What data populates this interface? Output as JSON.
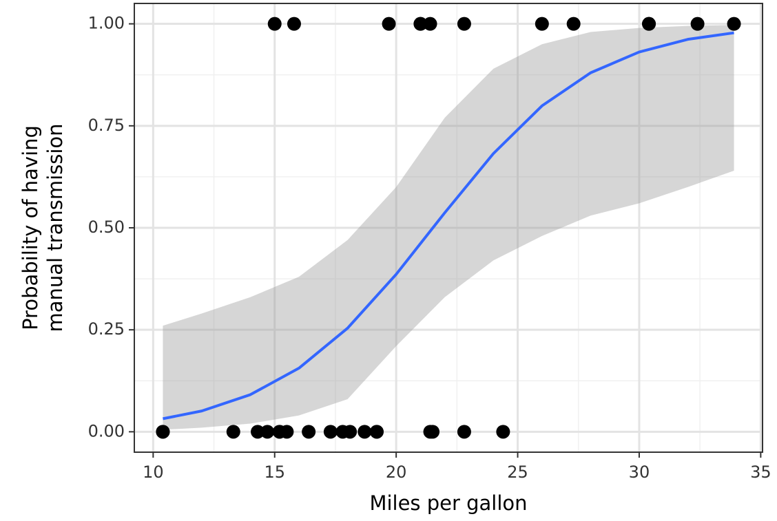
{
  "chart_data": {
    "type": "scatter",
    "xlabel": "Miles per gallon",
    "ylabel": [
      "Probability of having",
      "manual transmission"
    ],
    "xlim": [
      9.225,
      35.075
    ],
    "ylim": [
      -0.05,
      1.05
    ],
    "xticks": [
      10,
      15,
      20,
      25,
      30,
      35
    ],
    "xminor": [
      12.5,
      17.5,
      22.5,
      27.5,
      32.5
    ],
    "yticks": [
      {
        "value": 0,
        "label": "0.00"
      },
      {
        "value": 0.25,
        "label": "0.25"
      },
      {
        "value": 0.5,
        "label": "0.50"
      },
      {
        "value": 0.75,
        "label": "0.75"
      },
      {
        "value": 1,
        "label": "1.00"
      }
    ],
    "yminor": [
      0.125,
      0.375,
      0.625,
      0.875
    ],
    "grid": true,
    "points": {
      "color": "#000000",
      "x": [
        21.0,
        21.0,
        22.8,
        21.4,
        18.7,
        18.1,
        14.3,
        24.4,
        22.8,
        19.2,
        17.8,
        16.4,
        17.3,
        15.2,
        10.4,
        10.4,
        14.7,
        32.4,
        30.4,
        33.9,
        21.5,
        15.5,
        15.2,
        13.3,
        19.2,
        27.3,
        26.0,
        30.4,
        15.8,
        19.7,
        15.0,
        21.4
      ],
      "values": [
        1,
        1,
        1,
        0,
        0,
        0,
        0,
        0,
        0,
        0,
        0,
        0,
        0,
        0,
        0,
        0,
        0,
        1,
        1,
        1,
        0,
        0,
        0,
        0,
        0,
        1,
        1,
        1,
        1,
        1,
        1,
        1
      ]
    },
    "fit": {
      "color": "#3366ff",
      "band_color": "#999999",
      "x": [
        10.4,
        12,
        14,
        16,
        18,
        20,
        22,
        24,
        26,
        28,
        30,
        32,
        33.9
      ],
      "values": [
        0.032,
        0.051,
        0.091,
        0.156,
        0.254,
        0.386,
        0.537,
        0.682,
        0.799,
        0.88,
        0.931,
        0.962,
        0.978
      ],
      "lower": [
        0.005,
        0.01,
        0.02,
        0.04,
        0.08,
        0.21,
        0.33,
        0.42,
        0.48,
        0.53,
        0.56,
        0.6,
        0.64
      ],
      "upper": [
        0.26,
        0.29,
        0.33,
        0.38,
        0.47,
        0.6,
        0.77,
        0.89,
        0.95,
        0.98,
        0.99,
        0.995,
        0.997
      ]
    }
  }
}
